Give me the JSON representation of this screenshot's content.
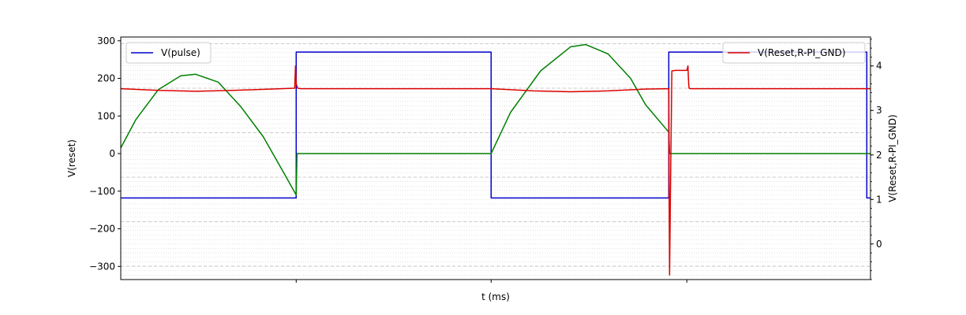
{
  "chart_data": {
    "type": "line",
    "title": "",
    "xlabel": "t (ms)",
    "ylabel_left": "V(reset)",
    "ylabel_right": "V(Reset,R-PI_GND)",
    "xlim": [
      0,
      1.0
    ],
    "ylim_left": [
      -335,
      310
    ],
    "ylim_right": [
      -0.8,
      4.65
    ],
    "yticks_left": [
      -300,
      -200,
      -100,
      0,
      100,
      200,
      300
    ],
    "yticks_right": [
      0,
      1,
      2,
      3,
      4
    ],
    "x_tick_positions": [
      0.234,
      0.494,
      0.755
    ],
    "x_tick_labels": [],
    "grid": true,
    "legend_left": {
      "position": "top-left",
      "entries": [
        {
          "name": "V(pulse)",
          "color": "#0000cc"
        }
      ]
    },
    "legend_right": {
      "position": "top-right",
      "entries": [
        {
          "name": "V(Reset,R-PI_GND)",
          "color": "#dd0000"
        }
      ]
    },
    "series": [
      {
        "name": "V(pulse)",
        "color": "#0000cc",
        "axis": "left",
        "step": true,
        "x": [
          0,
          0.234,
          0.234,
          0.494,
          0.494,
          0.731,
          0.731,
          0.995,
          0.995,
          1.0
        ],
        "y": [
          -118,
          -118,
          270,
          270,
          -118,
          -118,
          270,
          270,
          -118,
          -118
        ]
      },
      {
        "name": "",
        "color": "#008000",
        "axis": "left",
        "x": [
          0,
          0.02,
          0.05,
          0.08,
          0.1,
          0.13,
          0.16,
          0.19,
          0.22,
          0.234,
          0.235,
          0.3,
          0.4,
          0.494,
          0.52,
          0.56,
          0.6,
          0.62,
          0.65,
          0.68,
          0.7,
          0.731,
          0.732,
          0.74,
          0.8,
          0.9,
          1.0
        ],
        "y": [
          15,
          90,
          170,
          207,
          211,
          190,
          125,
          45,
          -60,
          -110,
          0,
          0,
          0,
          0,
          110,
          220,
          284,
          290,
          265,
          200,
          130,
          57,
          0,
          0,
          0,
          0,
          0
        ]
      },
      {
        "name": "V(Reset,R-PI_GND)",
        "color": "#dd0000",
        "axis": "right",
        "x": [
          0,
          0.05,
          0.1,
          0.15,
          0.2,
          0.232,
          0.233,
          0.234,
          0.236,
          0.24,
          0.3,
          0.4,
          0.494,
          0.55,
          0.6,
          0.65,
          0.7,
          0.731,
          0.7315,
          0.732,
          0.733,
          0.735,
          0.74,
          0.75,
          0.755,
          0.7565,
          0.757,
          0.7575,
          0.758,
          0.76,
          0.8,
          0.9,
          1.0
        ],
        "y": [
          3.49,
          3.45,
          3.43,
          3.45,
          3.48,
          3.5,
          4.0,
          3.6,
          3.5,
          3.49,
          3.49,
          3.49,
          3.49,
          3.44,
          3.42,
          3.44,
          3.48,
          3.49,
          1.0,
          -0.7,
          1.0,
          3.89,
          3.9,
          3.9,
          3.9,
          4.0,
          3.8,
          3.6,
          3.5,
          3.49,
          3.49,
          3.49,
          3.49
        ]
      }
    ]
  }
}
